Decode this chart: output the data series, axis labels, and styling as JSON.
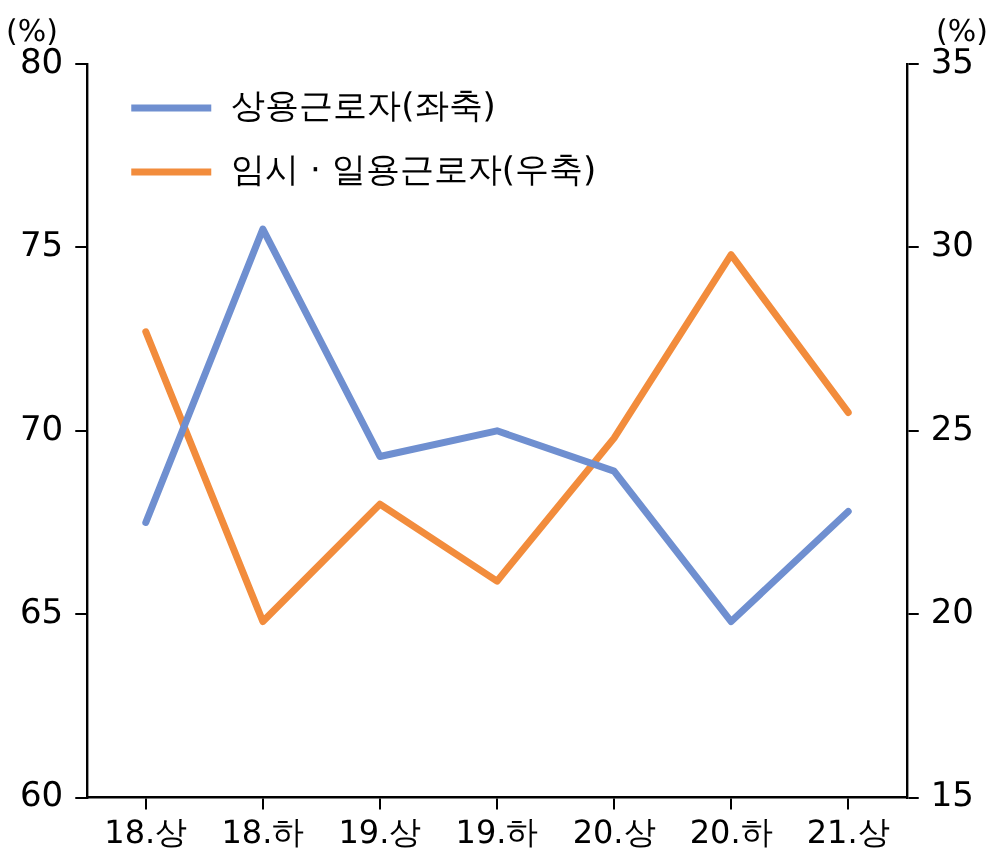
{
  "chart_data": {
    "type": "line",
    "ylabel": "(%)",
    "y2label": "(%)",
    "categories": [
      "18.상",
      "18.하",
      "19.상",
      "19.하",
      "20.상",
      "20.하",
      "21.상"
    ],
    "series": [
      {
        "name": "상용근로자(좌축)",
        "color": "#6f8fd0",
        "values": [
          67.5,
          75.5,
          69.3,
          70.0,
          68.9,
          64.8,
          67.8
        ]
      },
      {
        "name": "임시 · 일용근로자(우축)",
        "color": "#f28c3c",
        "axis": "y2",
        "values": [
          27.7,
          19.8,
          23.0,
          20.9,
          24.8,
          29.8,
          25.5
        ]
      }
    ],
    "ylim": [
      60,
      80
    ],
    "yticks": [
      60,
      65,
      70,
      75,
      80
    ],
    "y2lim": [
      15,
      35
    ],
    "y2ticks": [
      15,
      20,
      25,
      30,
      35
    ],
    "grid": false,
    "legend": "top left",
    "marker": "none",
    "line_style": "solid"
  }
}
